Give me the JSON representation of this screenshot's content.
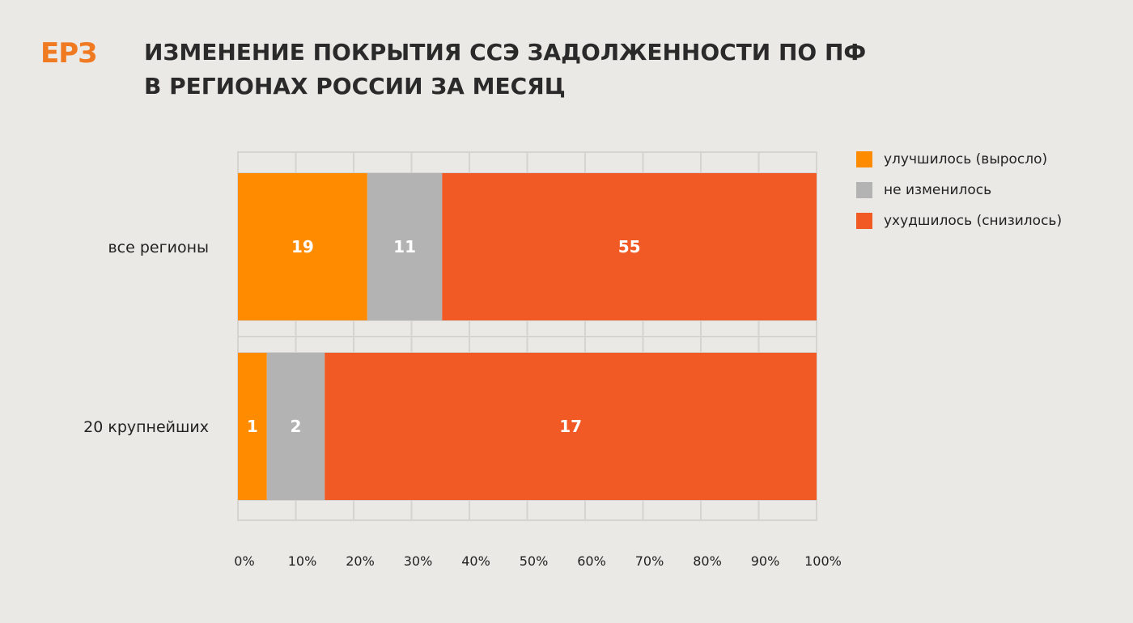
{
  "logo": {
    "text": "ЕРЗ",
    "color": "#f07a22"
  },
  "title": {
    "line1": "ИЗМЕНЕНИЕ ПОКРЫТИЯ ССЭ ЗАДОЛЖЕННОСТИ ПО ПФ",
    "line2": "В РЕГИОНАХ РОССИИ ЗА МЕСЯЦ"
  },
  "colors": {
    "improved": "#ff8c00",
    "unchanged": "#b3b3b3",
    "worsened": "#f15a24",
    "grid": "#d6d4d1",
    "background": "#ebe9e5"
  },
  "chart_data": {
    "type": "bar",
    "orientation": "horizontal",
    "stacked": true,
    "normalized": true,
    "title": "ИЗМЕНЕНИЕ ПОКРЫТИЯ ССЭ ЗАДОЛЖЕННОСТИ ПО ПФ В РЕГИОНАХ РОССИИ ЗА МЕСЯЦ",
    "categories": [
      "все регионы",
      "20 крупнейших"
    ],
    "series": [
      {
        "name": "улучшилось (выросло)",
        "values": [
          19,
          1
        ],
        "color": "#ff8c00"
      },
      {
        "name": "не изменилось",
        "values": [
          11,
          2
        ],
        "color": "#b3b3b3"
      },
      {
        "name": "ухудшилось (снизилось)",
        "values": [
          55,
          17
        ],
        "color": "#f15a24"
      }
    ],
    "xlim": [
      0,
      100
    ],
    "xticks": [
      "0%",
      "10%",
      "20%",
      "30%",
      "40%",
      "50%",
      "60%",
      "70%",
      "80%",
      "90%",
      "100%"
    ],
    "grid": true,
    "legend": "right"
  }
}
